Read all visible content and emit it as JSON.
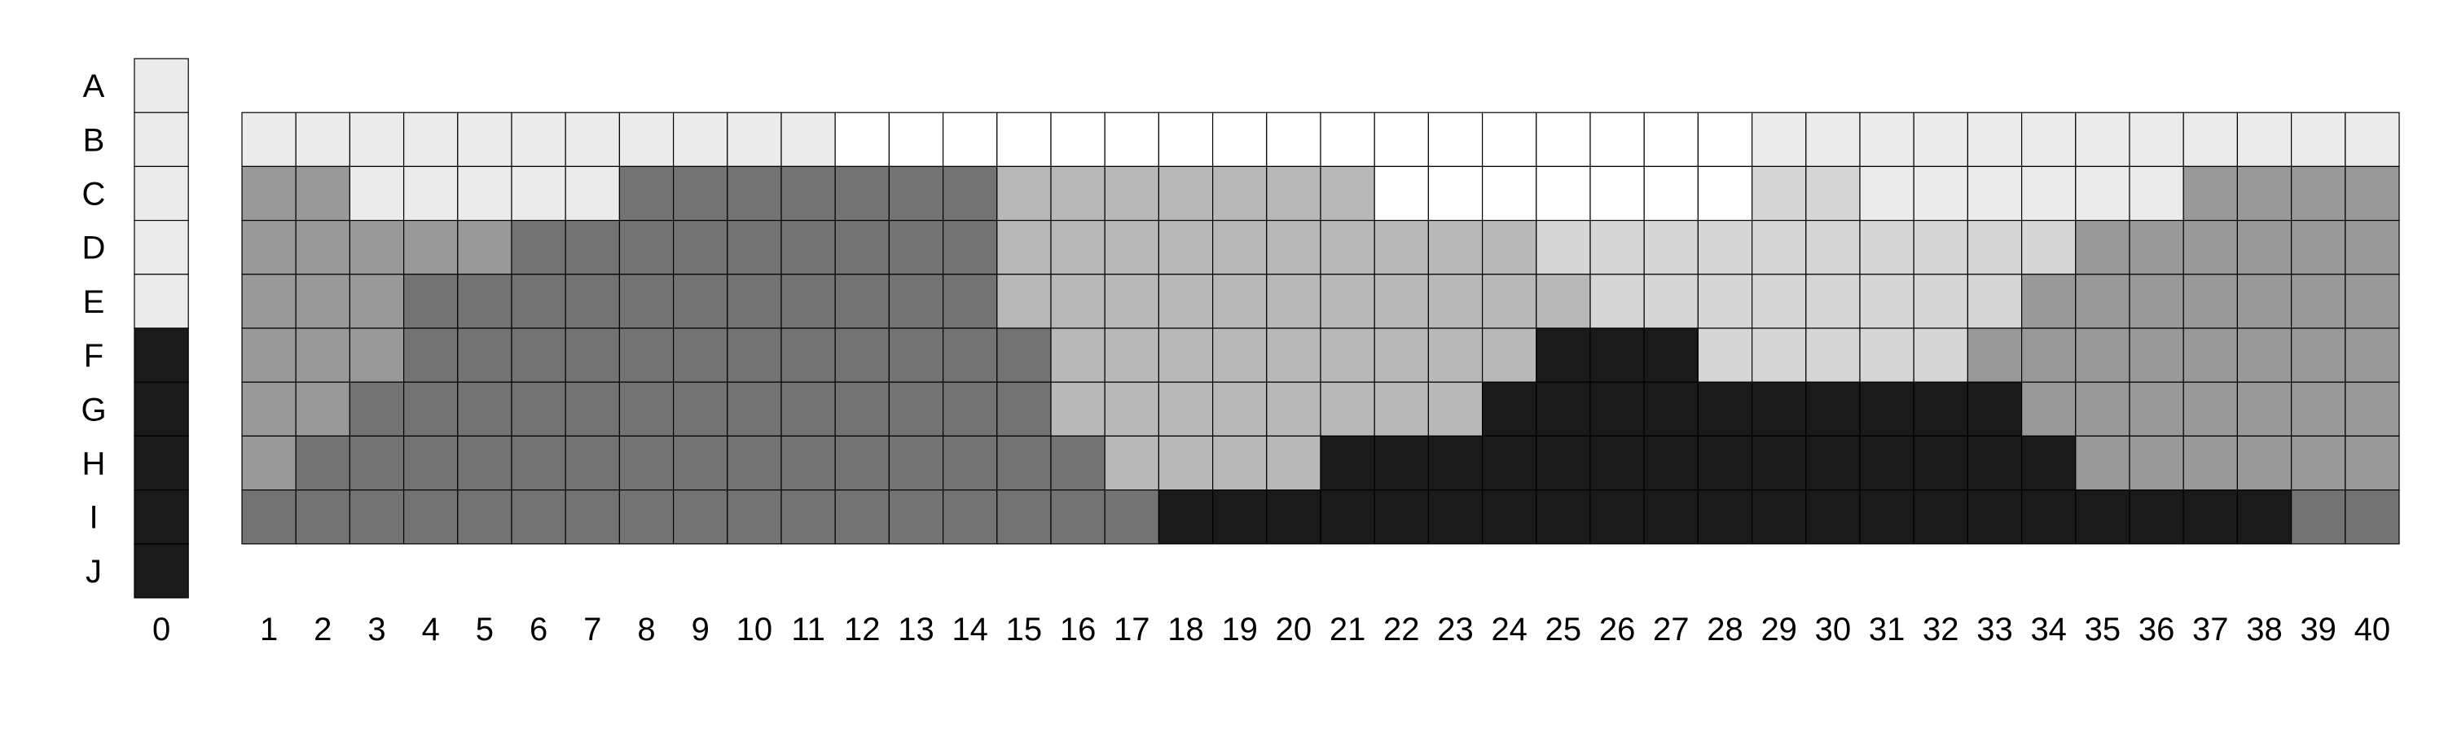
{
  "chart_data": {
    "type": "heatmap",
    "row_labels": [
      "A",
      "B",
      "C",
      "D",
      "E",
      "F",
      "G",
      "H",
      "I",
      "J"
    ],
    "legend_column": {
      "label": "0",
      "values": [
        1,
        1,
        1,
        1,
        1,
        6,
        6,
        6,
        6,
        6
      ]
    },
    "column_labels": [
      "1",
      "2",
      "3",
      "4",
      "5",
      "6",
      "7",
      "8",
      "9",
      "10",
      "11",
      "12",
      "13",
      "14",
      "15",
      "16",
      "17",
      "18",
      "19",
      "20",
      "21",
      "22",
      "23",
      "24",
      "25",
      "26",
      "27",
      "28",
      "29",
      "30",
      "31",
      "32",
      "33",
      "34",
      "35",
      "36",
      "37",
      "38",
      "39",
      "40"
    ],
    "grid_rows": [
      "B",
      "C",
      "D",
      "E",
      "F",
      "G",
      "H",
      "I"
    ],
    "grid_values": [
      [
        1,
        1,
        1,
        1,
        1,
        1,
        1,
        1,
        1,
        1,
        1,
        0,
        0,
        0,
        0,
        0,
        0,
        0,
        0,
        0,
        0,
        0,
        0,
        0,
        0,
        0,
        0,
        0,
        1,
        1,
        1,
        1,
        1,
        1,
        1,
        1,
        1,
        1,
        1,
        1
      ],
      [
        4,
        4,
        1,
        1,
        1,
        1,
        1,
        5,
        5,
        5,
        5,
        5,
        5,
        5,
        3,
        3,
        3,
        3,
        3,
        3,
        3,
        0,
        0,
        0,
        0,
        0,
        0,
        0,
        2,
        2,
        1,
        1,
        1,
        1,
        1,
        1,
        4,
        4,
        4,
        4
      ],
      [
        4,
        4,
        4,
        4,
        4,
        5,
        5,
        5,
        5,
        5,
        5,
        5,
        5,
        5,
        3,
        3,
        3,
        3,
        3,
        3,
        3,
        3,
        3,
        3,
        2,
        2,
        2,
        2,
        2,
        2,
        2,
        2,
        2,
        2,
        4,
        4,
        4,
        4,
        4,
        4
      ],
      [
        4,
        4,
        4,
        5,
        5,
        5,
        5,
        5,
        5,
        5,
        5,
        5,
        5,
        5,
        3,
        3,
        3,
        3,
        3,
        3,
        3,
        3,
        3,
        3,
        3,
        2,
        2,
        2,
        2,
        2,
        2,
        2,
        2,
        4,
        4,
        4,
        4,
        4,
        4,
        4
      ],
      [
        4,
        4,
        4,
        5,
        5,
        5,
        5,
        5,
        5,
        5,
        5,
        5,
        5,
        5,
        5,
        3,
        3,
        3,
        3,
        3,
        3,
        3,
        3,
        3,
        6,
        6,
        6,
        2,
        2,
        2,
        2,
        2,
        4,
        4,
        4,
        4,
        4,
        4,
        4,
        4
      ],
      [
        4,
        4,
        5,
        5,
        5,
        5,
        5,
        5,
        5,
        5,
        5,
        5,
        5,
        5,
        5,
        3,
        3,
        3,
        3,
        3,
        3,
        3,
        3,
        6,
        6,
        6,
        6,
        6,
        6,
        6,
        6,
        6,
        6,
        4,
        4,
        4,
        4,
        4,
        4,
        4
      ],
      [
        4,
        5,
        5,
        5,
        5,
        5,
        5,
        5,
        5,
        5,
        5,
        5,
        5,
        5,
        5,
        5,
        3,
        3,
        3,
        3,
        6,
        6,
        6,
        6,
        6,
        6,
        6,
        6,
        6,
        6,
        6,
        6,
        6,
        6,
        4,
        4,
        4,
        4,
        4,
        4
      ],
      [
        5,
        5,
        5,
        5,
        5,
        5,
        5,
        5,
        5,
        5,
        5,
        5,
        5,
        5,
        5,
        5,
        5,
        6,
        6,
        6,
        6,
        6,
        6,
        6,
        6,
        6,
        6,
        6,
        6,
        6,
        6,
        6,
        6,
        6,
        6,
        6,
        6,
        6,
        5,
        5
      ]
    ],
    "level_colors": [
      "#ffffff",
      "#ebebeb",
      "#d6d6d6",
      "#b8b8b8",
      "#999999",
      "#737373",
      "#1a1a1a"
    ],
    "grid": true
  }
}
